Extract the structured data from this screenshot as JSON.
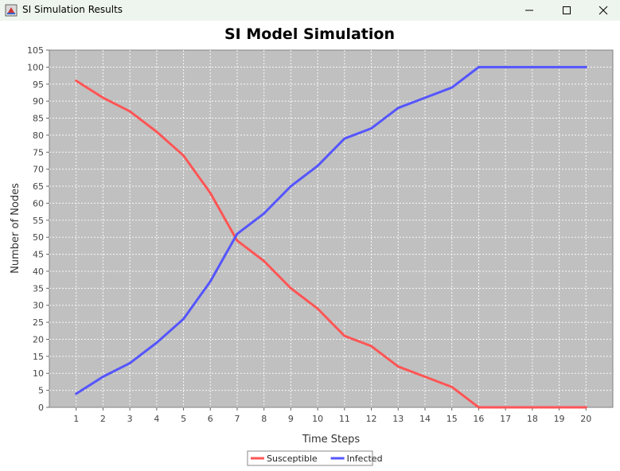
{
  "window": {
    "title": "SI Simulation Results",
    "icon": "java-app-icon",
    "controls": [
      "minimize-icon",
      "maximize-icon",
      "close-icon"
    ]
  },
  "chart_data": {
    "type": "line",
    "title": "SI Model Simulation",
    "xlabel": "Time Steps",
    "ylabel": "Number of Nodes",
    "x": [
      1,
      2,
      3,
      4,
      5,
      6,
      7,
      8,
      9,
      10,
      11,
      12,
      13,
      14,
      15,
      16,
      17,
      18,
      19,
      20
    ],
    "xlim": [
      0,
      21
    ],
    "ylim": [
      0,
      105
    ],
    "yticks": [
      0,
      5,
      10,
      15,
      20,
      25,
      30,
      35,
      40,
      45,
      50,
      55,
      60,
      65,
      70,
      75,
      80,
      85,
      90,
      95,
      100,
      105
    ],
    "grid": true,
    "legend_position": "bottom-center",
    "series": [
      {
        "name": "Susceptible",
        "color": "#ff5555",
        "values": [
          96,
          91,
          87,
          81,
          74,
          63,
          49,
          43,
          35,
          29,
          21,
          18,
          12,
          9,
          6,
          0,
          0,
          0,
          0,
          0
        ]
      },
      {
        "name": "Infected",
        "color": "#5555ff",
        "values": [
          4,
          9,
          13,
          19,
          26,
          37,
          51,
          57,
          65,
          71,
          79,
          82,
          88,
          91,
          94,
          100,
          100,
          100,
          100,
          100
        ]
      }
    ],
    "plot_background": "#c0c0c0"
  }
}
